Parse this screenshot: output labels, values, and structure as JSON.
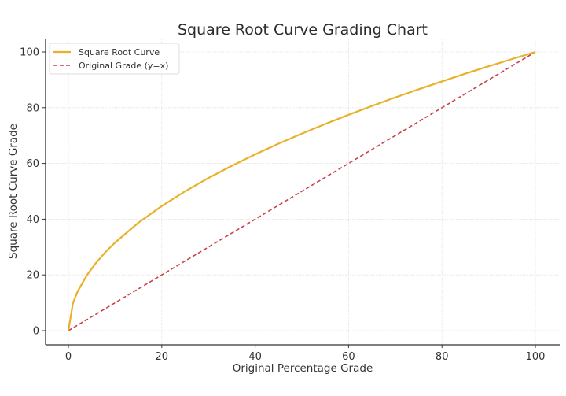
{
  "chart_data": {
    "type": "line",
    "title": "Square Root Curve Grading Chart",
    "xlabel": "Original Percentage Grade",
    "ylabel": "Square Root Curve Grade",
    "xlim": [
      -5,
      105
    ],
    "ylim": [
      -5,
      105
    ],
    "xticks": [
      0,
      20,
      40,
      60,
      80,
      100
    ],
    "yticks": [
      0,
      20,
      40,
      60,
      80,
      100
    ],
    "grid": true,
    "legend_position": "upper left",
    "x": [
      0,
      1,
      2,
      4,
      6,
      8,
      10,
      15,
      20,
      25,
      30,
      35,
      40,
      45,
      50,
      55,
      60,
      65,
      70,
      75,
      80,
      85,
      90,
      95,
      100
    ],
    "series": [
      {
        "name": "Square Root Curve",
        "style": "solid",
        "color": "#E8B12A",
        "values": [
          0,
          10,
          14.14,
          20,
          24.49,
          28.28,
          31.62,
          38.73,
          44.72,
          50,
          54.77,
          59.16,
          63.25,
          67.08,
          70.71,
          74.16,
          77.46,
          80.62,
          83.67,
          86.6,
          89.44,
          92.2,
          94.87,
          97.47,
          100
        ]
      },
      {
        "name": "Original Grade (y=x)",
        "style": "dashed",
        "color": "#C9414A",
        "values": [
          0,
          1,
          2,
          4,
          6,
          8,
          10,
          15,
          20,
          25,
          30,
          35,
          40,
          45,
          50,
          55,
          60,
          65,
          70,
          75,
          80,
          85,
          90,
          95,
          100
        ]
      }
    ]
  }
}
